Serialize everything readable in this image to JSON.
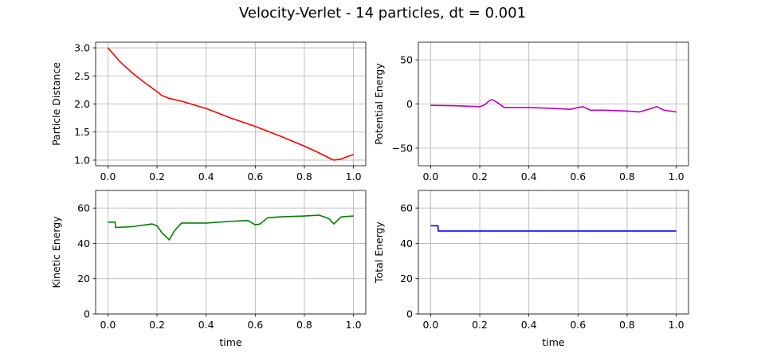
{
  "figure": {
    "title": "Velocity-Verlet - 14 particles, dt = 0.001"
  },
  "chart_data": [
    {
      "type": "line",
      "xlabel": "time",
      "ylabel": "Particle Distance",
      "xlim": [
        -0.05,
        1.05
      ],
      "ylim": [
        0.9,
        3.1
      ],
      "xticks": [
        0.0,
        0.2,
        0.4,
        0.6,
        0.8,
        1.0
      ],
      "yticks": [
        1.0,
        1.5,
        2.0,
        2.5,
        3.0
      ],
      "grid": true,
      "series": [
        {
          "color": "#ff0000",
          "x": [
            0.0,
            0.05,
            0.1,
            0.15,
            0.2,
            0.22,
            0.25,
            0.3,
            0.4,
            0.5,
            0.6,
            0.7,
            0.8,
            0.85,
            0.9,
            0.92,
            0.95,
            0.98,
            1.0
          ],
          "y": [
            3.0,
            2.75,
            2.55,
            2.38,
            2.22,
            2.15,
            2.1,
            2.05,
            1.92,
            1.75,
            1.6,
            1.43,
            1.25,
            1.15,
            1.04,
            1.0,
            1.02,
            1.07,
            1.1
          ]
        }
      ]
    },
    {
      "type": "line",
      "xlabel": "time",
      "ylabel": "Potential Energy",
      "xlim": [
        -0.05,
        1.05
      ],
      "ylim": [
        -70,
        70
      ],
      "xticks": [
        0.0,
        0.2,
        0.4,
        0.6,
        0.8,
        1.0
      ],
      "yticks": [
        -50,
        0,
        50
      ],
      "grid": true,
      "series": [
        {
          "color": "#bf00bf",
          "x": [
            0.0,
            0.1,
            0.2,
            0.22,
            0.24,
            0.25,
            0.27,
            0.3,
            0.4,
            0.5,
            0.57,
            0.6,
            0.62,
            0.65,
            0.7,
            0.8,
            0.85,
            0.9,
            0.92,
            0.95,
            1.0
          ],
          "y": [
            -1.5,
            -2,
            -3,
            -1,
            4,
            5,
            2,
            -4,
            -4,
            -5,
            -6,
            -4,
            -3,
            -7,
            -7,
            -8,
            -9,
            -5,
            -3,
            -7,
            -9
          ]
        }
      ]
    },
    {
      "type": "line",
      "xlabel": "time",
      "ylabel": "Kinetic Energy",
      "xlim": [
        -0.05,
        1.05
      ],
      "ylim": [
        0,
        70
      ],
      "xticks": [
        0.0,
        0.2,
        0.4,
        0.6,
        0.8,
        1.0
      ],
      "yticks": [
        0,
        20,
        40,
        60
      ],
      "grid": true,
      "series": [
        {
          "color": "#008000",
          "x": [
            0.0,
            0.03,
            0.031,
            0.1,
            0.18,
            0.2,
            0.22,
            0.25,
            0.27,
            0.3,
            0.35,
            0.4,
            0.5,
            0.57,
            0.6,
            0.62,
            0.65,
            0.7,
            0.8,
            0.86,
            0.9,
            0.92,
            0.95,
            1.0
          ],
          "y": [
            52,
            52,
            49,
            49.5,
            51,
            50,
            46,
            42,
            47,
            51.5,
            51.5,
            51.5,
            52.5,
            53,
            50.5,
            51,
            54.5,
            55,
            55.5,
            56,
            54,
            51,
            55,
            55.5
          ]
        }
      ]
    },
    {
      "type": "line",
      "xlabel": "time",
      "ylabel": "Total Energy",
      "xlim": [
        -0.05,
        1.05
      ],
      "ylim": [
        0,
        70
      ],
      "xticks": [
        0.0,
        0.2,
        0.4,
        0.6,
        0.8,
        1.0
      ],
      "yticks": [
        0,
        20,
        40,
        60
      ],
      "grid": true,
      "series": [
        {
          "color": "#0000ff",
          "x": [
            0.0,
            0.03,
            0.031,
            1.0
          ],
          "y": [
            50,
            50,
            47,
            47
          ]
        }
      ]
    }
  ]
}
